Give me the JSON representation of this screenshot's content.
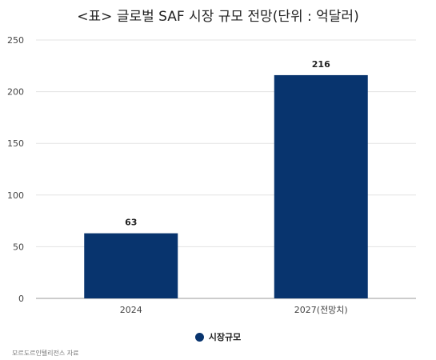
{
  "title": "<표> 글로벌 SAF 시장 규모 전망(단위 : 억달러)",
  "source": "모르도르인텔리전스 자료",
  "colors": {
    "bar": "#08346E",
    "grid": "#E3E3E3",
    "axis": "#999999"
  },
  "chart_data": {
    "type": "bar",
    "title": "<표> 글로벌 SAF 시장 규모 전망(단위 : 억달러)",
    "categories": [
      "2024",
      "2027(전망치)"
    ],
    "series": [
      {
        "name": "시장규모",
        "values": [
          63,
          216
        ]
      }
    ],
    "data_labels": [
      "63",
      "216"
    ],
    "ylim": [
      0,
      250
    ],
    "yticks": [
      0,
      50,
      100,
      150,
      200,
      250
    ],
    "grid": true,
    "legend": "bottom"
  }
}
